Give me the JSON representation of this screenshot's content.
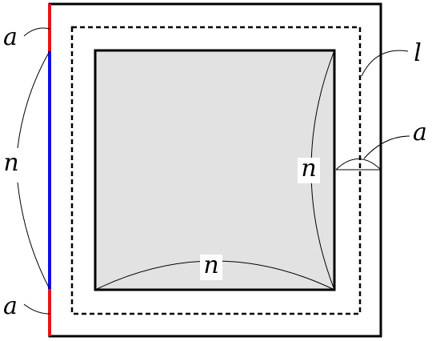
{
  "labels": [
    "a",
    "n",
    "a",
    "l",
    "a",
    "n",
    "n"
  ]
}
